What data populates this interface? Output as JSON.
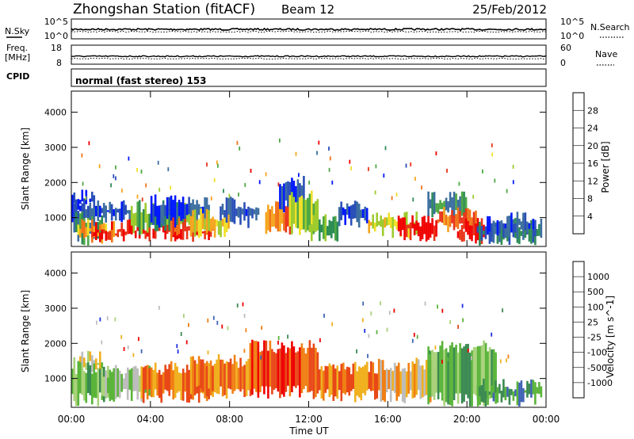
{
  "header": {
    "title": "Zhongshan Station (fitACF)",
    "beam": "Beam 12",
    "date": "25/Feb/2012"
  },
  "sky_panel": {
    "left_label": "N.Sky",
    "left_top": "10^5",
    "left_bottom": "10^0",
    "right_top": "10^5",
    "right_bottom": "10^0",
    "right_label": "N.Search"
  },
  "freq_panel": {
    "left_label_line1": "Freq.",
    "left_label_line2": "[MHz]",
    "left_top": "18",
    "left_bottom": "8",
    "right_top": "60",
    "right_bottom": "0",
    "right_label": "Nave"
  },
  "cpid_panel": {
    "label": "CPID",
    "text": "normal (fast stereo) 153"
  },
  "colors": {
    "power": [
      "#0018ff",
      "#2a4fb8",
      "#3c6ea0",
      "#2e8c55",
      "#4fa845",
      "#9ecb2e",
      "#f0e028",
      "#f5a51e",
      "#f07318",
      "#e8351a",
      "#f00000"
    ],
    "velocity": [
      "#1e2fe0",
      "#3f63b4",
      "#3a8a52",
      "#5ab43a",
      "#a9d27a",
      "#bdbdbd",
      "#f0b020",
      "#f07f14",
      "#e84818",
      "#ee0000"
    ]
  },
  "chart_data": [
    {
      "type": "heatmap",
      "name": "power",
      "x_range": [
        "00:00",
        "00:00"
      ],
      "x_ticks": [
        "00:00",
        "04:00",
        "08:00",
        "12:00",
        "16:00",
        "20:00",
        "00:00"
      ],
      "ylabel": "Slant Range [km]",
      "ylim": [
        180,
        4600
      ],
      "y_ticks": [
        1000,
        2000,
        3000,
        4000
      ],
      "colorbar_label": "Power [dB]",
      "colorbar_ticks": [
        "4",
        "8",
        "12",
        "16",
        "20",
        "24",
        "28"
      ],
      "bands": [
        {
          "x": [
            0.0,
            1.2
          ],
          "y": [
            1350,
            1600
          ],
          "level": 0
        },
        {
          "x": [
            0.0,
            1.5
          ],
          "y": [
            1000,
            1350
          ],
          "level": 1
        },
        {
          "x": [
            0.1,
            1.6
          ],
          "y": [
            400,
            1000
          ],
          "level": 3
        },
        {
          "x": [
            0.3,
            2.2
          ],
          "y": [
            450,
            800
          ],
          "level": 7
        },
        {
          "x": [
            1.0,
            2.6
          ],
          "y": [
            500,
            700
          ],
          "level": 10
        },
        {
          "x": [
            1.5,
            3.0
          ],
          "y": [
            1000,
            1400
          ],
          "level": 1
        },
        {
          "x": [
            2.5,
            5.5
          ],
          "y": [
            500,
            750
          ],
          "level": 10
        },
        {
          "x": [
            3.0,
            6.0
          ],
          "y": [
            700,
            1300
          ],
          "level": 4
        },
        {
          "x": [
            4.0,
            7.0
          ],
          "y": [
            900,
            1500
          ],
          "level": 1
        },
        {
          "x": [
            5.0,
            7.3
          ],
          "y": [
            500,
            800
          ],
          "level": 9
        },
        {
          "x": [
            6.0,
            8.0
          ],
          "y": [
            600,
            1100
          ],
          "level": 6
        },
        {
          "x": [
            7.5,
            9.5
          ],
          "y": [
            900,
            1400
          ],
          "level": 1
        },
        {
          "x": [
            9.8,
            11.5
          ],
          "y": [
            700,
            1300
          ],
          "level": 8
        },
        {
          "x": [
            10.5,
            11.8
          ],
          "y": [
            1300,
            2000
          ],
          "level": 1
        },
        {
          "x": [
            11.0,
            12.5
          ],
          "y": [
            700,
            1600
          ],
          "level": 5
        },
        {
          "x": [
            12.0,
            13.5
          ],
          "y": [
            500,
            900
          ],
          "level": 4
        },
        {
          "x": [
            13.5,
            15.0
          ],
          "y": [
            900,
            1400
          ],
          "level": 1
        },
        {
          "x": [
            15.0,
            17.5
          ],
          "y": [
            600,
            1000
          ],
          "level": 6
        },
        {
          "x": [
            16.5,
            18.5
          ],
          "y": [
            500,
            900
          ],
          "level": 10
        },
        {
          "x": [
            18.0,
            20.0
          ],
          "y": [
            1100,
            1600
          ],
          "level": 3
        },
        {
          "x": [
            18.5,
            20.5
          ],
          "y": [
            700,
            1100
          ],
          "level": 8
        },
        {
          "x": [
            19.5,
            21.2
          ],
          "y": [
            400,
            800
          ],
          "level": 10
        },
        {
          "x": [
            20.5,
            23.8
          ],
          "y": [
            400,
            800
          ],
          "level": 2
        },
        {
          "x": [
            21.0,
            23.5
          ],
          "y": [
            600,
            1000
          ],
          "level": 1
        }
      ]
    },
    {
      "type": "heatmap",
      "name": "velocity",
      "x_range": [
        "00:00",
        "00:00"
      ],
      "x_ticks": [
        "00:00",
        "04:00",
        "08:00",
        "12:00",
        "16:00",
        "20:00",
        "00:00"
      ],
      "xlabel": "Time UT",
      "ylabel": "Slant Range [km]",
      "ylim": [
        180,
        4600
      ],
      "y_ticks": [
        1000,
        2000,
        3000,
        4000
      ],
      "colorbar_label": "Velocity [m s^-1]",
      "colorbar_ticks": [
        "1000",
        "500",
        "100",
        "25",
        "-25",
        "-100",
        "-500",
        "-1000"
      ],
      "bands": [
        {
          "x": [
            0.0,
            1.5
          ],
          "y": [
            1300,
            1600
          ],
          "level": 5
        },
        {
          "x": [
            0.0,
            2.0
          ],
          "y": [
            400,
            1300
          ],
          "level": 3
        },
        {
          "x": [
            1.5,
            4.0
          ],
          "y": [
            500,
            1200
          ],
          "level": 4
        },
        {
          "x": [
            3.5,
            7.5
          ],
          "y": [
            500,
            1300
          ],
          "level": 7
        },
        {
          "x": [
            6.0,
            9.5
          ],
          "y": [
            600,
            1500
          ],
          "level": 7
        },
        {
          "x": [
            9.0,
            12.5
          ],
          "y": [
            600,
            1900
          ],
          "level": 8
        },
        {
          "x": [
            12.5,
            15.5
          ],
          "y": [
            500,
            1300
          ],
          "level": 7
        },
        {
          "x": [
            15.5,
            18.5
          ],
          "y": [
            500,
            1400
          ],
          "level": 6
        },
        {
          "x": [
            18.0,
            21.5
          ],
          "y": [
            400,
            1900
          ],
          "level": 3
        },
        {
          "x": [
            20.5,
            23.8
          ],
          "y": [
            400,
            800
          ],
          "level": 2
        }
      ]
    }
  ]
}
